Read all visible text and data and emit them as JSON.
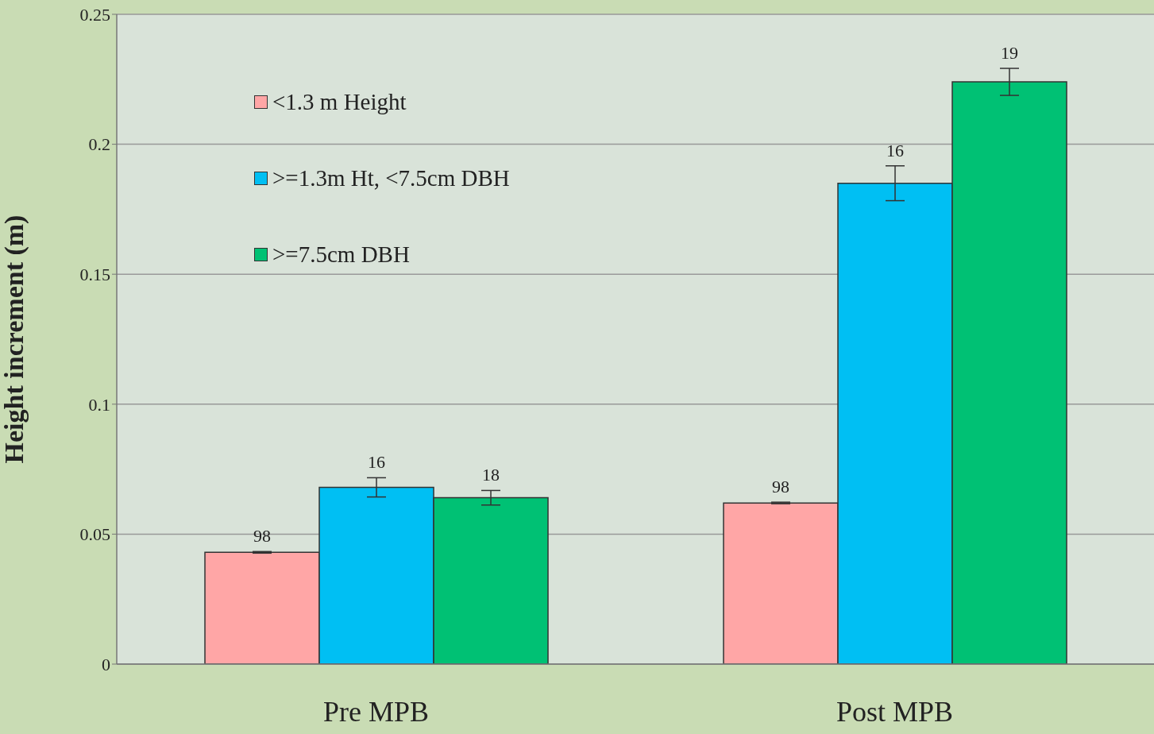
{
  "chart_data": {
    "type": "bar",
    "ylabel": "Height increment (m)",
    "categories": [
      "Pre MPB",
      "Post MPB"
    ],
    "series": [
      {
        "name": "<1.3 m Height",
        "color": "#ffa6a6",
        "values": [
          0.043,
          0.062
        ],
        "errors": [
          0.0003,
          0.0003
        ]
      },
      {
        "name": ">=1.3m Ht, <7.5cm DBH",
        "color": "#00bff3",
        "values": [
          0.068,
          0.185
        ],
        "errors": [
          0.0037,
          0.0067
        ]
      },
      {
        "name": ">=7.5cm DBH",
        "color": "#00c174",
        "values": [
          0.064,
          0.224
        ],
        "errors": [
          0.0028,
          0.0052
        ]
      }
    ],
    "annotations": [
      "98",
      "16",
      "18",
      "98",
      "16",
      "19"
    ],
    "ylim": [
      0,
      0.25
    ],
    "yticks": [
      0,
      0.05,
      0.1,
      0.15,
      0.2,
      0.25
    ],
    "grid": "y",
    "legend": "top left"
  }
}
